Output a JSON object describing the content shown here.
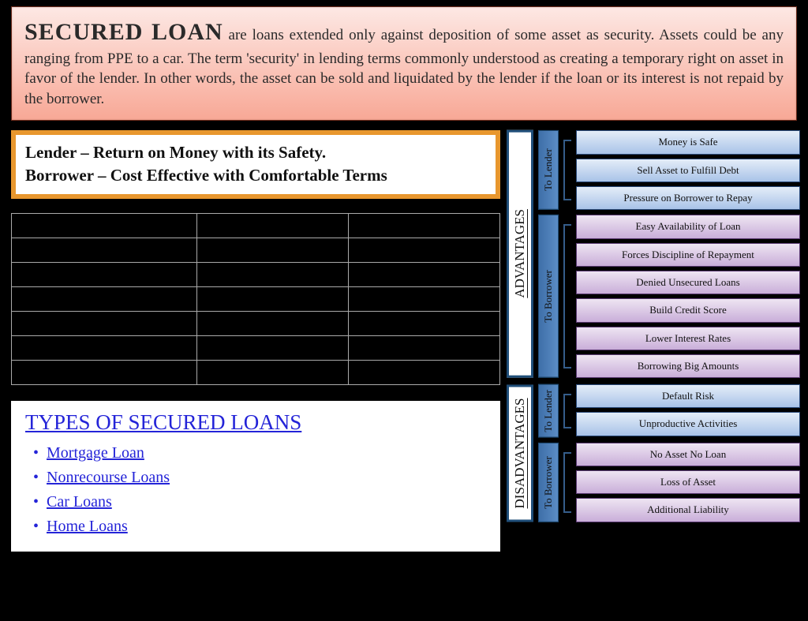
{
  "header": {
    "title": "SECURED LOAN",
    "body": " are loans extended only against deposition of some asset as security. Assets could be any ranging from PPE to a car. The term 'security' in lending terms commonly understood as creating a temporary right on asset in favor of the lender. In other words, the asset can be sold and liquidated by the lender if the loan or its interest is not repaid by the borrower."
  },
  "lender_borrower": {
    "line1": "Lender – Return on Money with its Safety.",
    "line2": "Borrower – Cost Effective with Comfortable Terms"
  },
  "table": {
    "rows": 7,
    "cols": 3
  },
  "types": {
    "heading": "TYPES OF SECURED LOANS",
    "items": [
      "Mortgage Loan",
      "Nonrecourse Loans",
      "Car Loans",
      "Home Loans"
    ]
  },
  "diagram": {
    "advantages": {
      "label": "ADVANTAGES",
      "to_lender": {
        "label": "To Lender",
        "color": "blue",
        "items": [
          "Money is Safe",
          "Sell Asset to Fulfill Debt",
          "Pressure on Borrower to Repay"
        ]
      },
      "to_borrower": {
        "label": "To Borrower",
        "color": "purple",
        "items": [
          "Easy Availability of Loan",
          "Forces Discipline of Repayment",
          "Denied Unsecured Loans",
          "Build Credit Score",
          "Lower Interest Rates",
          "Borrowing Big Amounts"
        ]
      }
    },
    "disadvantages": {
      "label": "DISADVANTAGES",
      "to_lender": {
        "label": "To Lender",
        "color": "blue",
        "items": [
          "Default Risk",
          "Unproductive Activities"
        ]
      },
      "to_borrower": {
        "label": "To Borrower",
        "color": "purple",
        "items": [
          "No Asset No Loan",
          "Loss of Asset",
          "Additional Liability"
        ]
      }
    }
  },
  "colors": {
    "header_grad_top": "#fde8e4",
    "header_grad_bottom": "#f8a896",
    "orange_border": "#e8972e",
    "link_blue": "#2424d8",
    "dark_blue_border": "#1f4e79",
    "blue_item_top": "#e4edf8",
    "blue_item_bottom": "#a9c3e8",
    "purple_item_top": "#eee5f2",
    "purple_item_bottom": "#c9aed9"
  }
}
